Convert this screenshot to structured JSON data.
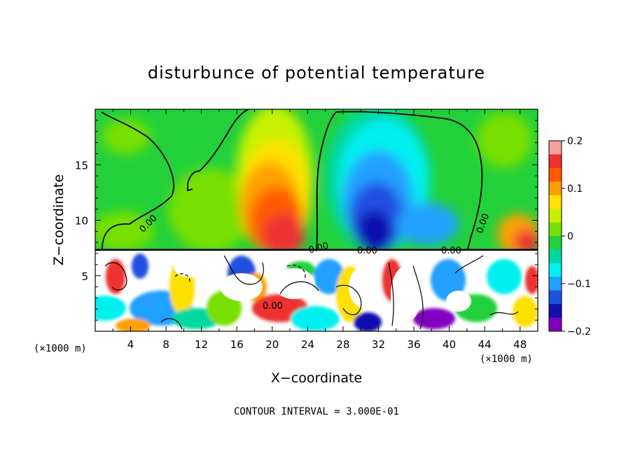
{
  "chart_data": {
    "type": "heatmap",
    "title": "disturbunce of potential temperature",
    "xlabel": "X−coordinate",
    "ylabel": "Z−coordinate",
    "x_unit_left": "(×1000 m)",
    "x_unit_right": "(×1000 m)",
    "xlim": [
      0,
      50
    ],
    "ylim": [
      0,
      20
    ],
    "x_ticks": [
      4,
      8,
      12,
      16,
      20,
      24,
      28,
      32,
      36,
      40,
      44,
      48
    ],
    "y_ticks": [
      5,
      10,
      15
    ],
    "x_tick_labels": [
      "4",
      "8",
      "12",
      "16",
      "20",
      "24",
      "28",
      "32",
      "36",
      "40",
      "44",
      "48"
    ],
    "y_tick_labels": [
      "5",
      "10",
      "15"
    ],
    "colorbar": {
      "min": -0.2,
      "max": 0.2,
      "ticks": [
        0.2,
        0.1,
        0,
        -0.1,
        -0.2
      ],
      "tick_labels": [
        "0.2",
        "0.1",
        "0",
        "−0.1",
        "−0.2"
      ],
      "colors": [
        "#f4a0a0",
        "#ee3030",
        "#ff5a00",
        "#ffa000",
        "#ffe000",
        "#c8f000",
        "#78e000",
        "#22d03a",
        "#00d8a0",
        "#00f0f0",
        "#20a0ff",
        "#2050e0",
        "#1010b0",
        "#8000c0"
      ]
    },
    "contour_labels": [
      "0.00",
      "0.00",
      "0.00",
      "0.00",
      "0.00",
      "0.00"
    ],
    "annotation": "CONTOUR INTERVAL = 3.000E-01",
    "regions": [
      {
        "x": [
          0,
          50
        ],
        "z": [
          7.5,
          20
        ],
        "desc": "upper layer near 0 (green) background"
      },
      {
        "x": [
          15,
          24
        ],
        "z": [
          7.5,
          14
        ],
        "value": 0.16
      },
      {
        "x": [
          28,
          40
        ],
        "z": [
          7.5,
          17
        ],
        "value": -0.15
      },
      {
        "x": [
          44,
          50
        ],
        "z": [
          7.5,
          10
        ],
        "value": 0.08
      },
      {
        "x": [
          0,
          50
        ],
        "z": [
          0,
          7.5
        ],
        "desc": "turbulent lower layer with mixed values"
      }
    ]
  }
}
